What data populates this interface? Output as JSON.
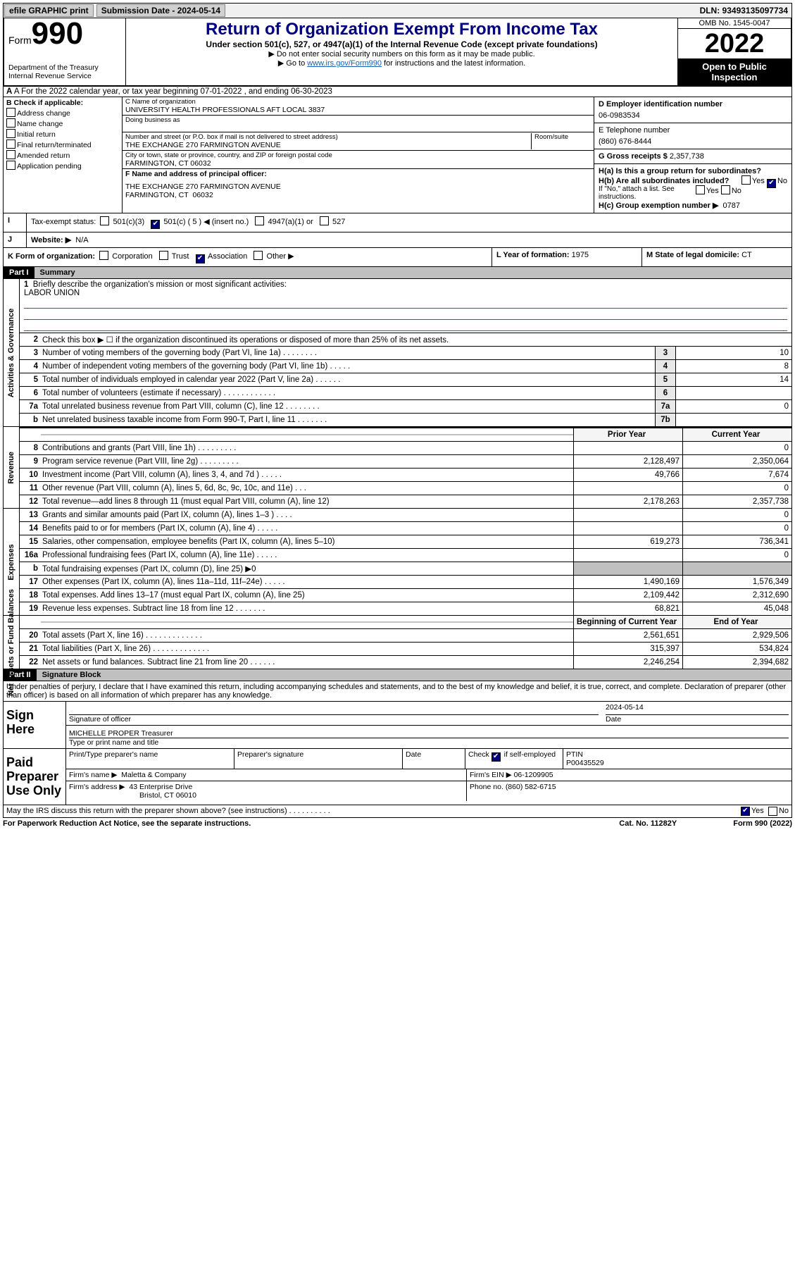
{
  "topbar": {
    "efile": "efile GRAPHIC print",
    "submission_label": "Submission Date - 2024-05-14",
    "dln": "DLN: 93493135097734"
  },
  "header": {
    "form_word": "Form",
    "form_num": "990",
    "dept": "Department of the Treasury\nInternal Revenue Service",
    "title": "Return of Organization Exempt From Income Tax",
    "subtitle": "Under section 501(c), 527, or 4947(a)(1) of the Internal Revenue Code (except private foundations)",
    "note1": "▶ Do not enter social security numbers on this form as it may be made public.",
    "note2_pre": "▶ Go to ",
    "note2_link": "www.irs.gov/Form990",
    "note2_post": " for instructions and the latest information.",
    "omb": "OMB No. 1545-0047",
    "year": "2022",
    "open": "Open to Public Inspection"
  },
  "rowA": "A For the 2022 calendar year, or tax year beginning 07-01-2022   , and ending 06-30-2023",
  "colB": {
    "head": "B Check if applicable:",
    "addr": "Address change",
    "name": "Name change",
    "init": "Initial return",
    "final": "Final return/terminated",
    "amend": "Amended return",
    "app": "Application pending"
  },
  "colC": {
    "name_lbl": "C Name of organization",
    "name": "UNIVERSITY HEALTH PROFESSIONALS AFT LOCAL 3837",
    "dba_lbl": "Doing business as",
    "street_lbl": "Number and street (or P.O. box if mail is not delivered to street address)",
    "room_lbl": "Room/suite",
    "street": "THE EXCHANGE 270 FARMINGTON AVENUE",
    "city_lbl": "City or town, state or province, country, and ZIP or foreign postal code",
    "city": "FARMINGTON, CT  06032",
    "f_lbl": "F Name and address of principal officer:",
    "f_addr": "THE EXCHANGE 270 FARMINGTON AVENUE\nFARMINGTON, CT  06032"
  },
  "colR": {
    "d_lbl": "D Employer identification number",
    "d_val": "06-0983534",
    "e_lbl": "E Telephone number",
    "e_val": "(860) 676-8444",
    "g_lbl": "G Gross receipts $",
    "g_val": "2,357,738",
    "ha": "H(a)  Is this a group return for subordinates?",
    "hb": "H(b)  Are all subordinates included?",
    "hnote": "If \"No,\" attach a list. See instructions.",
    "hc_lbl": "H(c)  Group exemption number ▶",
    "hc_val": "0787",
    "yes": "Yes",
    "no": "No"
  },
  "rowI": {
    "lbl": "Tax-exempt status:",
    "c3": "501(c)(3)",
    "c5": "501(c) ( 5 ) ◀ (insert no.)",
    "a1": "4947(a)(1) or",
    "s527": "527"
  },
  "rowJ": {
    "lbl": "Website: ▶",
    "val": "N/A"
  },
  "rowK": {
    "lbl": "K Form of organization:",
    "corp": "Corporation",
    "trust": "Trust",
    "assoc": "Association",
    "other": "Other ▶",
    "l_lbl": "L Year of formation:",
    "l_val": "1975",
    "m_lbl": "M State of legal domicile:",
    "m_val": "CT"
  },
  "part1": {
    "num": "Part I",
    "title": "Summary"
  },
  "gov": {
    "side": "Activities & Governance",
    "q1": "Briefly describe the organization's mission or most significant activities:",
    "q1v": "LABOR UNION",
    "q2": "Check this box ▶ ☐  if the organization discontinued its operations or disposed of more than 25% of its net assets.",
    "rows": [
      {
        "n": "3",
        "t": "Number of voting members of the governing body (Part VI, line 1a)   .    .    .    .    .    .    .    .",
        "b": "3",
        "v": "10"
      },
      {
        "n": "4",
        "t": "Number of independent voting members of the governing body (Part VI, line 1b)   .    .    .    .    .",
        "b": "4",
        "v": "8"
      },
      {
        "n": "5",
        "t": "Total number of individuals employed in calendar year 2022 (Part V, line 2a)   .    .    .    .    .    .",
        "b": "5",
        "v": "14"
      },
      {
        "n": "6",
        "t": "Total number of volunteers (estimate if necessary)   .    .    .    .    .    .    .    .    .    .    .    .",
        "b": "6",
        "v": ""
      },
      {
        "n": "7a",
        "t": "Total unrelated business revenue from Part VIII, column (C), line 12   .    .    .    .    .    .    .    .",
        "b": "7a",
        "v": "0"
      },
      {
        "n": "b",
        "t": "Net unrelated business taxable income from Form 990-T, Part I, line 11   .    .    .    .    .    .    .",
        "b": "7b",
        "v": ""
      }
    ]
  },
  "hdrPY": "Prior Year",
  "hdrCY": "Current Year",
  "rev": {
    "side": "Revenue",
    "rows": [
      {
        "n": "8",
        "t": "Contributions and grants (Part VIII, line 1h)   .    .    .    .    .    .    .    .    .",
        "p": "",
        "c": "0"
      },
      {
        "n": "9",
        "t": "Program service revenue (Part VIII, line 2g)   .    .    .    .    .    .    .    .    .",
        "p": "2,128,497",
        "c": "2,350,064"
      },
      {
        "n": "10",
        "t": "Investment income (Part VIII, column (A), lines 3, 4, and 7d )   .    .    .    .    .",
        "p": "49,766",
        "c": "7,674"
      },
      {
        "n": "11",
        "t": "Other revenue (Part VIII, column (A), lines 5, 6d, 8c, 9c, 10c, and 11e)   .    .    .",
        "p": "",
        "c": "0"
      },
      {
        "n": "12",
        "t": "Total revenue—add lines 8 through 11 (must equal Part VIII, column (A), line 12)",
        "p": "2,178,263",
        "c": "2,357,738"
      }
    ]
  },
  "exp": {
    "side": "Expenses",
    "rows": [
      {
        "n": "13",
        "t": "Grants and similar amounts paid (Part IX, column (A), lines 1–3 )   .    .    .    .",
        "p": "",
        "c": "0"
      },
      {
        "n": "14",
        "t": "Benefits paid to or for members (Part IX, column (A), line 4)   .    .    .    .    .",
        "p": "",
        "c": "0"
      },
      {
        "n": "15",
        "t": "Salaries, other compensation, employee benefits (Part IX, column (A), lines 5–10)",
        "p": "619,273",
        "c": "736,341"
      },
      {
        "n": "16a",
        "t": "Professional fundraising fees (Part IX, column (A), line 11e)   .    .    .    .    .",
        "p": "",
        "c": "0"
      },
      {
        "n": "b",
        "t": "Total fundraising expenses (Part IX, column (D), line 25) ▶0",
        "p": "grey",
        "c": "grey"
      },
      {
        "n": "17",
        "t": "Other expenses (Part IX, column (A), lines 11a–11d, 11f–24e)   .    .    .    .    .",
        "p": "1,490,169",
        "c": "1,576,349"
      },
      {
        "n": "18",
        "t": "Total expenses. Add lines 13–17 (must equal Part IX, column (A), line 25)",
        "p": "2,109,442",
        "c": "2,312,690"
      },
      {
        "n": "19",
        "t": "Revenue less expenses. Subtract line 18 from line 12   .    .    .    .    .    .    .",
        "p": "68,821",
        "c": "45,048"
      }
    ]
  },
  "hdrBY": "Beginning of Current Year",
  "hdrEY": "End of Year",
  "net": {
    "side": "Net Assets or Fund Balances",
    "rows": [
      {
        "n": "20",
        "t": "Total assets (Part X, line 16)   .    .    .    .    .    .    .    .    .    .    .    .    .",
        "p": "2,561,651",
        "c": "2,929,506"
      },
      {
        "n": "21",
        "t": "Total liabilities (Part X, line 26)   .    .    .    .    .    .    .    .    .    .    .    .    .",
        "p": "315,397",
        "c": "534,824"
      },
      {
        "n": "22",
        "t": "Net assets or fund balances. Subtract line 21 from line 20   .    .    .    .    .    .",
        "p": "2,246,254",
        "c": "2,394,682"
      }
    ]
  },
  "part2": {
    "num": "Part II",
    "title": "Signature Block"
  },
  "sig": {
    "intro": "Under penalties of perjury, I declare that I have examined this return, including accompanying schedules and statements, and to the best of my knowledge and belief, it is true, correct, and complete. Declaration of preparer (other than officer) is based on all information of which preparer has any knowledge.",
    "sign_here": "Sign Here",
    "sig_of": "Signature of officer",
    "date": "Date",
    "date_v": "2024-05-14",
    "name": "MICHELLE PROPER  Treasurer",
    "name_lbl": "Type or print name and title"
  },
  "prep": {
    "left": "Paid Preparer Use Only",
    "h1": "Print/Type preparer's name",
    "h2": "Preparer's signature",
    "h3": "Date",
    "h4a": "Check ☑ if self-employed",
    "h4b": "PTIN",
    "ptin": "P00435529",
    "firm_lbl": "Firm's name    ▶",
    "firm": "Maletta & Company",
    "ein_lbl": "Firm's EIN ▶",
    "ein": "06-1209905",
    "addr_lbl": "Firm's address ▶",
    "addr1": "43 Enterprise Drive",
    "addr2": "Bristol, CT  06010",
    "phone_lbl": "Phone no.",
    "phone": "(860) 582-6715"
  },
  "footer": {
    "discuss": "May the IRS discuss this return with the preparer shown above? (see instructions)   .    .    .    .    .    .    .    .    .    .",
    "yes": "Yes",
    "no": "No",
    "pra": "For Paperwork Reduction Act Notice, see the separate instructions.",
    "cat": "Cat. No. 11282Y",
    "form": "Form 990 (2022)"
  }
}
